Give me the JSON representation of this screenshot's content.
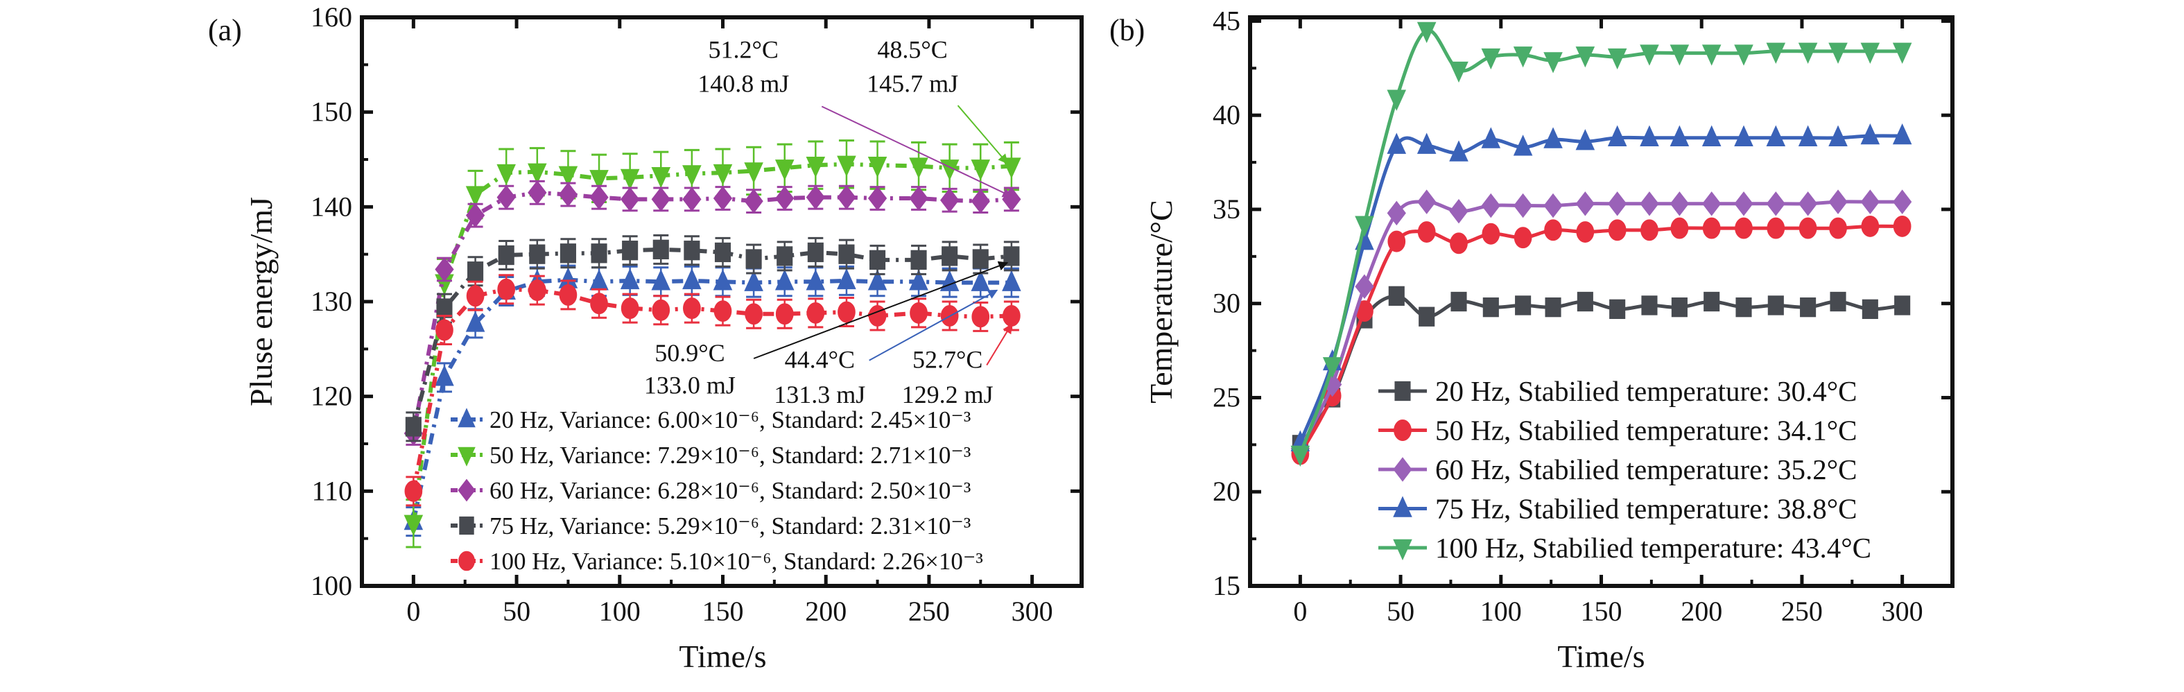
{
  "chart_data": [
    {
      "type": "line",
      "panel_label": "(a)",
      "xlabel": "Time/s",
      "ylabel": "Pluse energy/mJ",
      "xlim": [
        -25,
        324
      ],
      "ylim": [
        100,
        160
      ],
      "x_ticks": [
        0,
        50,
        100,
        150,
        200,
        250,
        300
      ],
      "x_tick_labels": [
        "0",
        "50",
        "100",
        "150",
        "200",
        "250",
        "300"
      ],
      "y_ticks": [
        100,
        110,
        120,
        130,
        140,
        150,
        160
      ],
      "y_tick_labels": [
        "100",
        "110",
        "120",
        "130",
        "140",
        "150",
        "160"
      ],
      "grid": false,
      "legend_placement": "bottom-right",
      "error_bars": true,
      "x": [
        0,
        15,
        30,
        45,
        60,
        75,
        90,
        105,
        120,
        135,
        150,
        165,
        180,
        195,
        210,
        225,
        245,
        260,
        275,
        290
      ],
      "series": [
        {
          "name": "20 Hz, Variance: 6.00×10⁻⁶, Standard: 2.45×10⁻³",
          "marker": "triangle-up",
          "color": "#3a62b8",
          "error": 1.5,
          "values": [
            106.8,
            122.0,
            127.7,
            131.1,
            132.1,
            132.3,
            132.1,
            132.2,
            132.1,
            132.2,
            132.1,
            132.0,
            132.1,
            132.1,
            132.2,
            132.1,
            132.1,
            132.0,
            132.0,
            132.0
          ]
        },
        {
          "name": "50 Hz, Variance: 7.29×10⁻⁶, Standard: 2.71×10⁻³",
          "marker": "triangle-down",
          "color": "#5bbf2a",
          "error": 2.5,
          "values": [
            106.6,
            132.0,
            141.3,
            143.6,
            143.7,
            143.4,
            143.0,
            143.1,
            143.3,
            143.5,
            143.6,
            143.8,
            144.1,
            144.4,
            144.5,
            144.4,
            144.3,
            144.1,
            144.1,
            144.3
          ]
        },
        {
          "name": "60 Hz, Variance: 6.28×10⁻⁶, Standard: 2.50×10⁻³",
          "marker": "diamond",
          "color": "#9b3fa0",
          "error": 1.2,
          "values": [
            116.1,
            133.4,
            139.1,
            141.0,
            141.5,
            141.3,
            141.0,
            140.8,
            140.8,
            140.8,
            140.9,
            140.6,
            140.9,
            141.0,
            141.0,
            140.9,
            140.9,
            140.7,
            140.6,
            140.8
          ]
        },
        {
          "name": "75 Hz, Variance: 5.29×10⁻⁶, Standard: 2.31×10⁻³",
          "marker": "square",
          "color": "#474a50",
          "error": 1.5,
          "values": [
            116.8,
            129.3,
            133.2,
            134.9,
            135.0,
            135.1,
            135.1,
            135.4,
            135.5,
            135.4,
            135.2,
            134.5,
            134.8,
            135.2,
            135.0,
            134.4,
            134.4,
            134.8,
            134.5,
            134.8
          ]
        },
        {
          "name": "100 Hz, Variance: 5.10×10⁻⁶, Standard: 2.26×10⁻³",
          "marker": "circle",
          "color": "#e8303f",
          "error": 1.5,
          "values": [
            110.0,
            127.0,
            130.6,
            131.3,
            131.2,
            130.7,
            129.8,
            129.3,
            129.1,
            129.3,
            129.0,
            128.7,
            128.7,
            128.8,
            128.9,
            128.5,
            128.8,
            128.5,
            128.4,
            128.5
          ]
        }
      ],
      "annotations": [
        {
          "lines": [
            "51.2°C",
            "140.8 mJ"
          ],
          "color": "#9b3fa0"
        },
        {
          "lines": [
            "48.5°C",
            "145.7 mJ"
          ],
          "color": "#5bbf2a"
        },
        {
          "lines": [
            "50.9°C",
            "133.0 mJ"
          ],
          "color": "#111111"
        },
        {
          "lines": [
            "44.4°C",
            "131.3 mJ"
          ],
          "color": "#3a62b8"
        },
        {
          "lines": [
            "52.7°C",
            "129.2 mJ"
          ],
          "color": "#e8303f"
        }
      ]
    },
    {
      "type": "line",
      "panel_label": "(b)",
      "xlabel": "Time/s",
      "ylabel": "Temperature/°C",
      "xlim": [
        -25,
        325
      ],
      "ylim": [
        15,
        45.2
      ],
      "x_ticks": [
        0,
        50,
        100,
        150,
        200,
        250,
        300
      ],
      "x_tick_labels": [
        "0",
        "50",
        "100",
        "150",
        "200",
        "250",
        "300"
      ],
      "y_ticks": [
        15,
        20,
        25,
        30,
        35,
        40,
        45
      ],
      "y_tick_labels": [
        "15",
        "20",
        "25",
        "30",
        "35",
        "40",
        "45"
      ],
      "grid": false,
      "legend_placement": "bottom-right",
      "x": [
        0,
        16,
        32,
        48,
        63,
        79,
        95,
        111,
        126,
        142,
        158,
        174,
        189,
        205,
        221,
        237,
        253,
        268,
        284,
        300
      ],
      "series": [
        {
          "name": "20 Hz, Stabilied temperature: 30.4°C",
          "marker": "square",
          "color": "#474a50",
          "values": [
            22.5,
            25.0,
            29.2,
            30.4,
            29.3,
            30.1,
            29.8,
            29.9,
            29.8,
            30.1,
            29.7,
            29.9,
            29.8,
            30.1,
            29.8,
            29.9,
            29.8,
            30.1,
            29.7,
            29.9
          ]
        },
        {
          "name": "50 Hz, Stabilied temperature: 34.1°C",
          "marker": "circle",
          "color": "#e8303f",
          "values": [
            22.0,
            25.1,
            29.6,
            33.3,
            33.8,
            33.2,
            33.7,
            33.5,
            33.9,
            33.8,
            33.9,
            33.9,
            34.0,
            34.0,
            34.0,
            34.0,
            34.0,
            34.0,
            34.1,
            34.1
          ]
        },
        {
          "name": "60 Hz, Stabilied temperature: 35.2°C",
          "marker": "diamond",
          "color": "#9a62b8",
          "values": [
            22.3,
            25.7,
            30.9,
            34.8,
            35.4,
            34.9,
            35.2,
            35.2,
            35.2,
            35.3,
            35.3,
            35.3,
            35.3,
            35.3,
            35.3,
            35.3,
            35.3,
            35.4,
            35.4,
            35.4
          ]
        },
        {
          "name": "75 Hz, Stabilied temperature: 38.8°C",
          "marker": "triangle-up",
          "color": "#3a62b8",
          "values": [
            22.6,
            26.9,
            33.3,
            38.4,
            38.4,
            38.0,
            38.7,
            38.3,
            38.7,
            38.6,
            38.8,
            38.8,
            38.8,
            38.8,
            38.8,
            38.8,
            38.8,
            38.8,
            38.9,
            38.9
          ]
        },
        {
          "name": "100 Hz, Stabilied temperature: 43.4°C",
          "marker": "triangle-down",
          "color": "#4aad6a",
          "values": [
            22.0,
            26.7,
            34.2,
            40.9,
            44.5,
            42.4,
            43.1,
            43.2,
            42.9,
            43.2,
            43.1,
            43.3,
            43.3,
            43.3,
            43.3,
            43.4,
            43.4,
            43.4,
            43.4,
            43.4
          ]
        }
      ]
    }
  ]
}
